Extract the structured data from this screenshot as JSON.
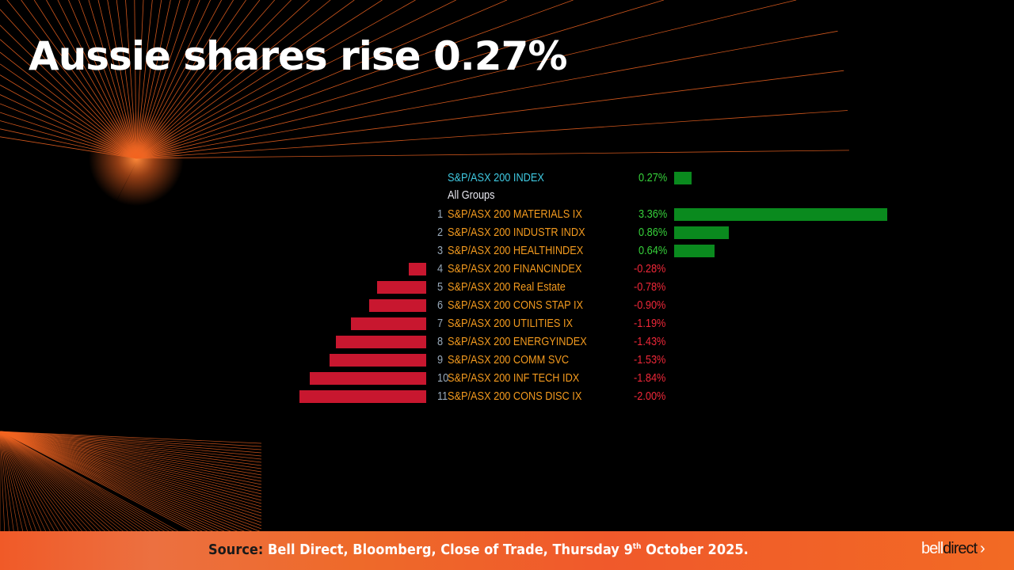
{
  "title": "Aussie shares rise 0.27%",
  "table": {
    "index": {
      "name": "S&P/ASX 200 INDEX",
      "pct": "0.27%",
      "value": 0.27
    },
    "group_label": "All Groups",
    "rows": [
      {
        "rank": "1",
        "name": "S&P/ASX 200 MATERIALS IX",
        "pct": "3.36%",
        "value": 3.36
      },
      {
        "rank": "2",
        "name": "S&P/ASX 200 INDUSTR INDX",
        "pct": "0.86%",
        "value": 0.86
      },
      {
        "rank": "3",
        "name": "S&P/ASX 200 HEALTHINDEX",
        "pct": "0.64%",
        "value": 0.64
      },
      {
        "rank": "4",
        "name": "S&P/ASX 200 FINANCINDEX",
        "pct": "-0.28%",
        "value": -0.28
      },
      {
        "rank": "5",
        "name": "S&P/ASX 200 Real Estate",
        "pct": "-0.78%",
        "value": -0.78
      },
      {
        "rank": "6",
        "name": "S&P/ASX 200 CONS STAP IX",
        "pct": "-0.90%",
        "value": -0.9
      },
      {
        "rank": "7",
        "name": "S&P/ASX 200 UTILITIES IX",
        "pct": "-1.19%",
        "value": -1.19
      },
      {
        "rank": "8",
        "name": "S&P/ASX 200 ENERGYINDEX",
        "pct": "-1.43%",
        "value": -1.43
      },
      {
        "rank": "9",
        "name": "S&P/ASX 200 COMM SVC",
        "pct": "-1.53%",
        "value": -1.53
      },
      {
        "rank": "10",
        "name": "S&P/ASX 200 INF TECH IDX",
        "pct": "-1.84%",
        "value": -1.84
      },
      {
        "rank": "11",
        "name": "S&P/ASX 200 CONS DISC IX",
        "pct": "-2.00%",
        "value": -2.0
      }
    ]
  },
  "colors": {
    "positive": "#0a8a1e",
    "negative": "#c8172f",
    "accent": "#f26522"
  },
  "footer": {
    "source_label": "Source:",
    "source_text": "Bell Direct, Bloomberg, Close of Trade, Thursday 9",
    "sup": "th",
    "source_end": " October 2025.",
    "logo_bell": "bell",
    "logo_direct": "direct",
    "logo_chevron": "›"
  }
}
